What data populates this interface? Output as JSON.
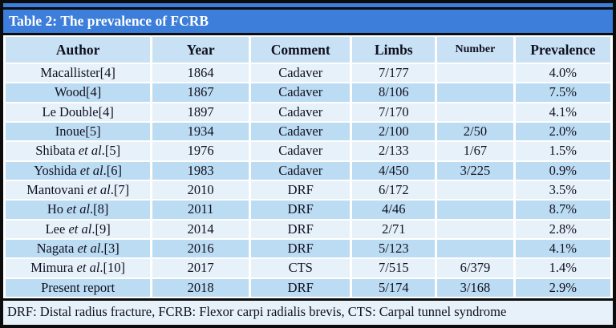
{
  "title": "Table 2: The prevalence of FCRB",
  "colors": {
    "accent_blue": "#3c7ed9",
    "frame_black": "#0c0c0c",
    "header_row_bg": "#c9e1f5",
    "row_light_bg": "#e7f1fa",
    "row_dark_bg": "#bcdcf3",
    "title_text": "#ffffff",
    "body_text": "#10101e",
    "separator_white": "#ffffff"
  },
  "table": {
    "columns": [
      "Author",
      "Year",
      "Comment",
      "Limbs",
      "Number",
      "Prevalence"
    ],
    "italic_phrase": "et al",
    "rows": [
      [
        "Macallister[4]",
        "1864",
        "Cadaver",
        "7/177",
        "",
        "4.0%"
      ],
      [
        "Wood[4]",
        "1867",
        "Cadaver",
        "8/106",
        "",
        "7.5%"
      ],
      [
        "Le Double[4]",
        "1897",
        "Cadaver",
        "7/170",
        "",
        "4.1%"
      ],
      [
        "Inoue[5]",
        "1934",
        "Cadaver",
        "2/100",
        "2/50",
        "2.0%"
      ],
      [
        "Shibata et al.[5]",
        "1976",
        "Cadaver",
        "2/133",
        "1/67",
        "1.5%"
      ],
      [
        "Yoshida et al.[6]",
        "1983",
        "Cadaver",
        "4/450",
        "3/225",
        "0.9%"
      ],
      [
        "Mantovani et al.[7]",
        "2010",
        "DRF",
        "6/172",
        "",
        "3.5%"
      ],
      [
        "Ho et al.[8]",
        "2011",
        "DRF",
        "4/46",
        "",
        "8.7%"
      ],
      [
        "Lee et al.[9]",
        "2014",
        "DRF",
        "2/71",
        "",
        "2.8%"
      ],
      [
        "Nagata et al.[3]",
        "2016",
        "DRF",
        "5/123",
        "",
        "4.1%"
      ],
      [
        "Mimura et al.[10]",
        "2017",
        "CTS",
        "7/515",
        "6/379",
        "1.4%"
      ],
      [
        "Present report",
        "2018",
        "DRF",
        "5/174",
        "3/168",
        "2.9%"
      ]
    ]
  },
  "footnote": "DRF: Distal radius fracture, FCRB: Flexor carpi radialis brevis, CTS: Carpal tunnel syndrome"
}
